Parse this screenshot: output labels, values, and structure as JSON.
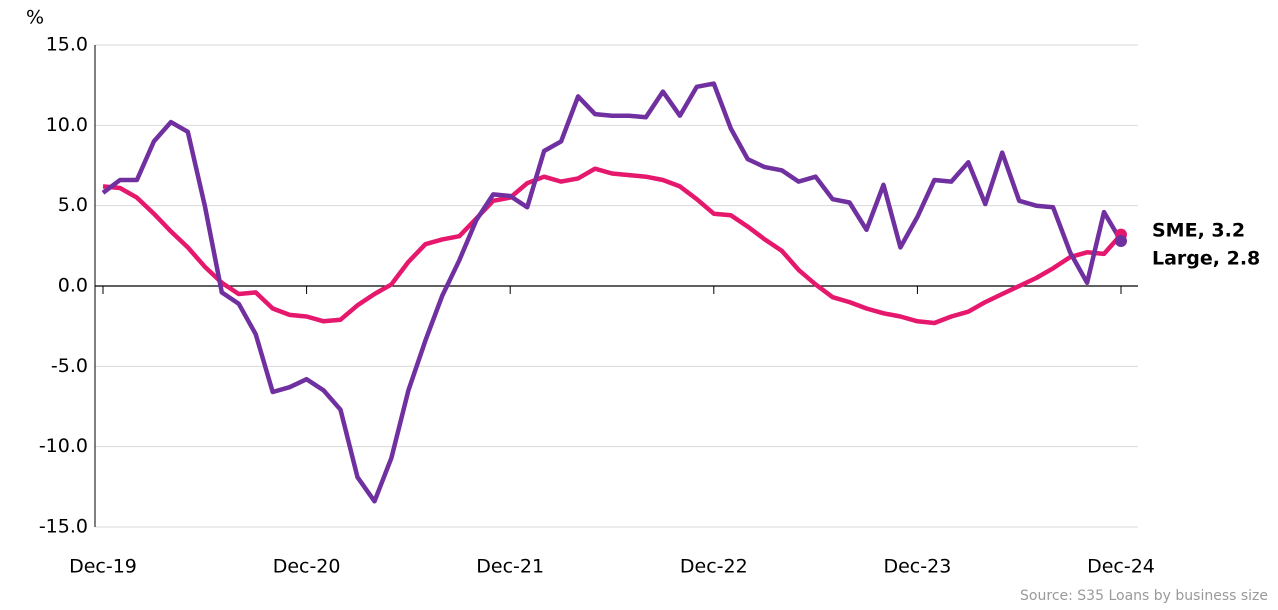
{
  "chart_data": {
    "type": "line",
    "y_unit": "%",
    "source": "Source:  S35 Loans by business size",
    "categories": [
      "Dec-19",
      null,
      null,
      null,
      null,
      null,
      null,
      null,
      null,
      null,
      null,
      null,
      "Dec-20",
      null,
      null,
      null,
      null,
      null,
      null,
      null,
      null,
      null,
      null,
      null,
      "Dec-21",
      null,
      null,
      null,
      null,
      null,
      null,
      null,
      null,
      null,
      null,
      null,
      "Dec-22",
      null,
      null,
      null,
      null,
      null,
      null,
      null,
      null,
      null,
      null,
      null,
      "Dec-23",
      null,
      null,
      null,
      null,
      null,
      null,
      null,
      null,
      null,
      null,
      null,
      "Dec-24"
    ],
    "series": [
      {
        "name": "SME",
        "color": "#e6186e",
        "values": [
          6.2,
          6.1,
          5.5,
          4.5,
          3.4,
          2.4,
          1.2,
          0.2,
          -0.5,
          -0.4,
          -1.4,
          -1.8,
          -1.9,
          -2.2,
          -2.1,
          -1.2,
          -0.5,
          0.1,
          1.5,
          2.6,
          2.9,
          3.1,
          4.2,
          5.3,
          5.5,
          6.4,
          6.8,
          6.5,
          6.7,
          7.3,
          7.0,
          6.9,
          6.8,
          6.6,
          6.2,
          5.4,
          4.5,
          4.4,
          3.7,
          2.9,
          2.2,
          1.0,
          0.1,
          -0.7,
          -1.0,
          -1.4,
          -1.7,
          -1.9,
          -2.2,
          -2.3,
          -1.9,
          -1.6,
          -1.0,
          -0.5,
          0.0,
          0.5,
          1.1,
          1.8,
          2.1,
          2.0,
          3.2
        ],
        "value_labels": [
          null,
          null,
          null,
          null,
          null,
          null,
          null,
          null,
          null,
          null,
          null,
          null,
          null,
          null,
          null,
          null,
          null,
          null,
          null,
          null,
          null,
          null,
          null,
          null,
          null,
          null,
          null,
          null,
          null,
          null,
          null,
          null,
          null,
          null,
          null,
          null,
          null,
          null,
          null,
          null,
          null,
          null,
          null,
          null,
          null,
          null,
          null,
          null,
          null,
          null,
          null,
          null,
          null,
          null,
          null,
          null,
          null,
          null,
          null,
          null,
          "SME, 3.2"
        ]
      },
      {
        "name": "Large",
        "color": "#7030a0",
        "values": [
          5.8,
          6.6,
          6.6,
          9.0,
          10.2,
          9.6,
          5.0,
          -0.4,
          -1.1,
          -3.0,
          -6.6,
          -6.3,
          -5.8,
          -6.5,
          -7.7,
          -11.9,
          -13.4,
          -10.7,
          -6.5,
          -3.4,
          -0.6,
          1.6,
          4.1,
          5.7,
          5.6,
          4.9,
          8.4,
          9.0,
          11.8,
          10.7,
          10.6,
          10.6,
          10.5,
          12.1,
          10.6,
          12.4,
          12.6,
          9.8,
          7.9,
          7.4,
          7.2,
          6.5,
          6.8,
          5.4,
          5.2,
          3.5,
          6.3,
          2.4,
          4.3,
          6.6,
          6.5,
          7.7,
          5.1,
          8.3,
          5.3,
          5.0,
          4.9,
          2.1,
          0.2,
          4.6,
          2.8
        ],
        "value_labels": [
          null,
          null,
          null,
          null,
          null,
          null,
          null,
          null,
          null,
          null,
          null,
          null,
          null,
          null,
          null,
          null,
          null,
          null,
          null,
          null,
          null,
          null,
          null,
          null,
          null,
          null,
          null,
          null,
          null,
          null,
          null,
          null,
          null,
          null,
          null,
          null,
          null,
          null,
          null,
          null,
          null,
          null,
          null,
          null,
          null,
          null,
          null,
          null,
          null,
          null,
          null,
          null,
          null,
          null,
          null,
          null,
          null,
          null,
          null,
          null,
          "Large, 2.8"
        ]
      }
    ],
    "ylim": [
      -15,
      15
    ],
    "yticks": [
      {
        "value": -15,
        "label": "-15.0"
      },
      {
        "value": -10,
        "label": "-10.0"
      },
      {
        "value": -5,
        "label": "-5.0"
      },
      {
        "value": 0,
        "label": "0.0"
      },
      {
        "value": 5,
        "label": "5.0"
      },
      {
        "value": 10,
        "label": "10.0"
      },
      {
        "value": 15,
        "label": "15.0"
      }
    ],
    "grid": true
  }
}
